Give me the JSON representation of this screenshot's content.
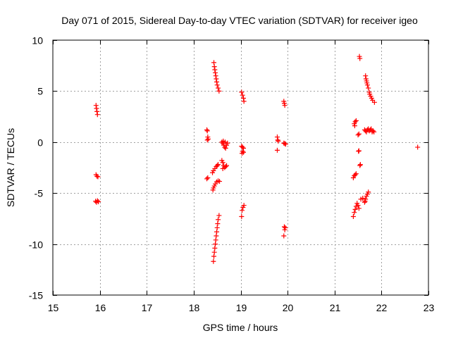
{
  "chart_data": {
    "type": "scatter",
    "title": "Day 071 of 2015, Sidereal Day-to-day VTEC variation (SDTVAR) for receiver igeo",
    "xlabel": "GPS time / hours",
    "ylabel": "SDTVAR / TECUs",
    "xlim": [
      15,
      23
    ],
    "ylim": [
      -15,
      10
    ],
    "xticks": [
      15,
      16,
      17,
      18,
      19,
      20,
      21,
      22,
      23
    ],
    "yticks": [
      -15,
      -10,
      -5,
      0,
      5,
      10
    ],
    "marker": "+",
    "marker_color": "#ff0000",
    "grid": true,
    "series": [
      {
        "name": "SDTVAR",
        "points": [
          [
            15.92,
            3.6
          ],
          [
            15.93,
            3.3
          ],
          [
            15.94,
            3.0
          ],
          [
            15.95,
            2.7
          ],
          [
            15.92,
            -3.2
          ],
          [
            15.94,
            -3.35
          ],
          [
            15.96,
            -3.4
          ],
          [
            15.91,
            -5.8
          ],
          [
            15.93,
            -5.9
          ],
          [
            15.95,
            -5.75
          ],
          [
            15.97,
            -5.85
          ],
          [
            18.28,
            1.2
          ],
          [
            18.29,
            1.1
          ],
          [
            18.3,
            0.5
          ],
          [
            18.29,
            0.2
          ],
          [
            18.31,
            0.3
          ],
          [
            18.3,
            -3.5
          ],
          [
            18.28,
            -3.6
          ],
          [
            18.43,
            7.8
          ],
          [
            18.44,
            7.4
          ],
          [
            18.45,
            7.1
          ],
          [
            18.46,
            6.8
          ],
          [
            18.47,
            6.5
          ],
          [
            18.48,
            6.2
          ],
          [
            18.49,
            5.9
          ],
          [
            18.5,
            5.6
          ],
          [
            18.52,
            5.3
          ],
          [
            18.54,
            5.0
          ],
          [
            18.4,
            -3.0
          ],
          [
            18.42,
            -2.8
          ],
          [
            18.45,
            -2.6
          ],
          [
            18.48,
            -2.4
          ],
          [
            18.5,
            -2.3
          ],
          [
            18.52,
            -2.2
          ],
          [
            18.41,
            -4.7
          ],
          [
            18.42,
            -4.5
          ],
          [
            18.44,
            -4.3
          ],
          [
            18.46,
            -4.1
          ],
          [
            18.49,
            -3.9
          ],
          [
            18.52,
            -3.8
          ],
          [
            18.55,
            -3.85
          ],
          [
            18.42,
            -11.7
          ],
          [
            18.43,
            -11.2
          ],
          [
            18.44,
            -10.8
          ],
          [
            18.45,
            -10.4
          ],
          [
            18.46,
            -10.0
          ],
          [
            18.47,
            -9.6
          ],
          [
            18.48,
            -9.2
          ],
          [
            18.49,
            -8.8
          ],
          [
            18.5,
            -8.4
          ],
          [
            18.51,
            -8.0
          ],
          [
            18.52,
            -7.6
          ],
          [
            18.54,
            -7.2
          ],
          [
            18.6,
            0.0
          ],
          [
            18.62,
            -0.1
          ],
          [
            18.64,
            -0.3
          ],
          [
            18.66,
            -0.5
          ],
          [
            18.68,
            -0.6
          ],
          [
            18.7,
            -0.3
          ],
          [
            18.72,
            -0.1
          ],
          [
            18.63,
            0.1
          ],
          [
            18.67,
            0.0
          ],
          [
            18.6,
            -1.8
          ],
          [
            18.62,
            -2.0
          ],
          [
            18.64,
            -2.3
          ],
          [
            18.66,
            -2.5
          ],
          [
            18.68,
            -2.4
          ],
          [
            18.7,
            -2.3
          ],
          [
            18.62,
            -2.6
          ],
          [
            19.02,
            4.9
          ],
          [
            19.04,
            4.6
          ],
          [
            19.06,
            4.3
          ],
          [
            19.07,
            4.0
          ],
          [
            19.02,
            -0.4
          ],
          [
            19.04,
            -0.5
          ],
          [
            19.06,
            -0.6
          ],
          [
            19.04,
            -0.9
          ],
          [
            19.06,
            -1.0
          ],
          [
            19.03,
            -1.1
          ],
          [
            19.03,
            -6.7
          ],
          [
            19.05,
            -6.4
          ],
          [
            19.07,
            -6.2
          ],
          [
            19.02,
            -7.3
          ],
          [
            19.78,
            0.5
          ],
          [
            19.79,
            0.2
          ],
          [
            19.8,
            0.1
          ],
          [
            19.78,
            -0.8
          ],
          [
            19.92,
            4.0
          ],
          [
            19.93,
            3.8
          ],
          [
            19.94,
            3.6
          ],
          [
            19.92,
            -0.1
          ],
          [
            19.94,
            -0.15
          ],
          [
            19.96,
            -0.2
          ],
          [
            19.93,
            -8.3
          ],
          [
            19.94,
            -8.6
          ],
          [
            19.92,
            -9.2
          ],
          [
            19.95,
            -8.4
          ],
          [
            21.42,
            1.8
          ],
          [
            21.44,
            2.0
          ],
          [
            21.46,
            2.1
          ],
          [
            21.43,
            1.6
          ],
          [
            21.4,
            -3.5
          ],
          [
            21.42,
            -3.3
          ],
          [
            21.44,
            -3.2
          ],
          [
            21.46,
            -3.1
          ],
          [
            21.4,
            -7.3
          ],
          [
            21.42,
            -6.9
          ],
          [
            21.44,
            -6.6
          ],
          [
            21.46,
            -6.3
          ],
          [
            21.48,
            -6.0
          ],
          [
            21.5,
            -6.2
          ],
          [
            21.52,
            -6.5
          ],
          [
            21.5,
            0.7
          ],
          [
            21.52,
            0.8
          ],
          [
            21.51,
            -0.9
          ],
          [
            21.52,
            -0.85
          ],
          [
            21.54,
            -2.3
          ],
          [
            21.55,
            -2.2
          ],
          [
            21.53,
            8.4
          ],
          [
            21.54,
            8.2
          ],
          [
            21.56,
            -5.6
          ],
          [
            21.6,
            -5.5
          ],
          [
            21.66,
            6.5
          ],
          [
            21.67,
            6.2
          ],
          [
            21.68,
            6.0
          ],
          [
            21.69,
            5.8
          ],
          [
            21.7,
            5.6
          ],
          [
            21.72,
            5.3
          ],
          [
            21.74,
            4.9
          ],
          [
            21.75,
            4.7
          ],
          [
            21.77,
            4.5
          ],
          [
            21.79,
            4.3
          ],
          [
            21.81,
            4.1
          ],
          [
            21.85,
            3.9
          ],
          [
            21.64,
            1.2
          ],
          [
            21.66,
            1.1
          ],
          [
            21.68,
            1.0
          ],
          [
            21.7,
            1.2
          ],
          [
            21.72,
            1.3
          ],
          [
            21.74,
            1.1
          ],
          [
            21.76,
            1.2
          ],
          [
            21.78,
            1.3
          ],
          [
            21.8,
            1.0
          ],
          [
            21.82,
            1.1
          ],
          [
            21.84,
            1.0
          ],
          [
            21.64,
            -5.9
          ],
          [
            21.66,
            -5.6
          ],
          [
            21.68,
            -5.3
          ],
          [
            21.7,
            -5.1
          ],
          [
            21.72,
            -4.9
          ],
          [
            21.65,
            -5.8
          ],
          [
            22.77,
            -0.5
          ]
        ]
      }
    ]
  }
}
